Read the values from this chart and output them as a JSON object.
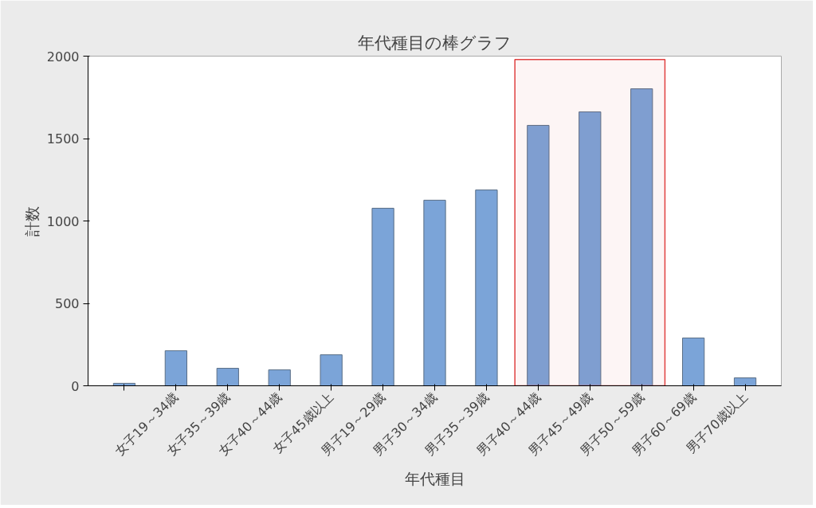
{
  "chart_data": {
    "type": "bar",
    "title": "年代種目の棒グラフ",
    "xlabel": "年代種目",
    "ylabel": "計数",
    "categories": [
      null,
      "女子19～34歳",
      "女子35～39歳",
      "女子40～44歳",
      "女子45歳以上",
      "男子19～29歳",
      "男子30～34歳",
      "男子35～39歳",
      "男子40～44歳",
      "男子45～49歳",
      "男子50～59歳",
      "男子60～69歳",
      "男子70歳以上"
    ],
    "values": [
      15,
      213,
      106,
      97,
      188,
      1077,
      1126,
      1188,
      1580,
      1662,
      1802,
      290,
      48
    ],
    "color": "#7ba4d8",
    "ylim": [
      0,
      2000
    ],
    "yticks": [
      0,
      500,
      1000,
      1500,
      2000
    ],
    "grid": false,
    "bands": [
      {
        "axis": "x",
        "from": "男子40～44歳",
        "to": "男子50～59歳",
        "color": "#e04040"
      }
    ]
  }
}
